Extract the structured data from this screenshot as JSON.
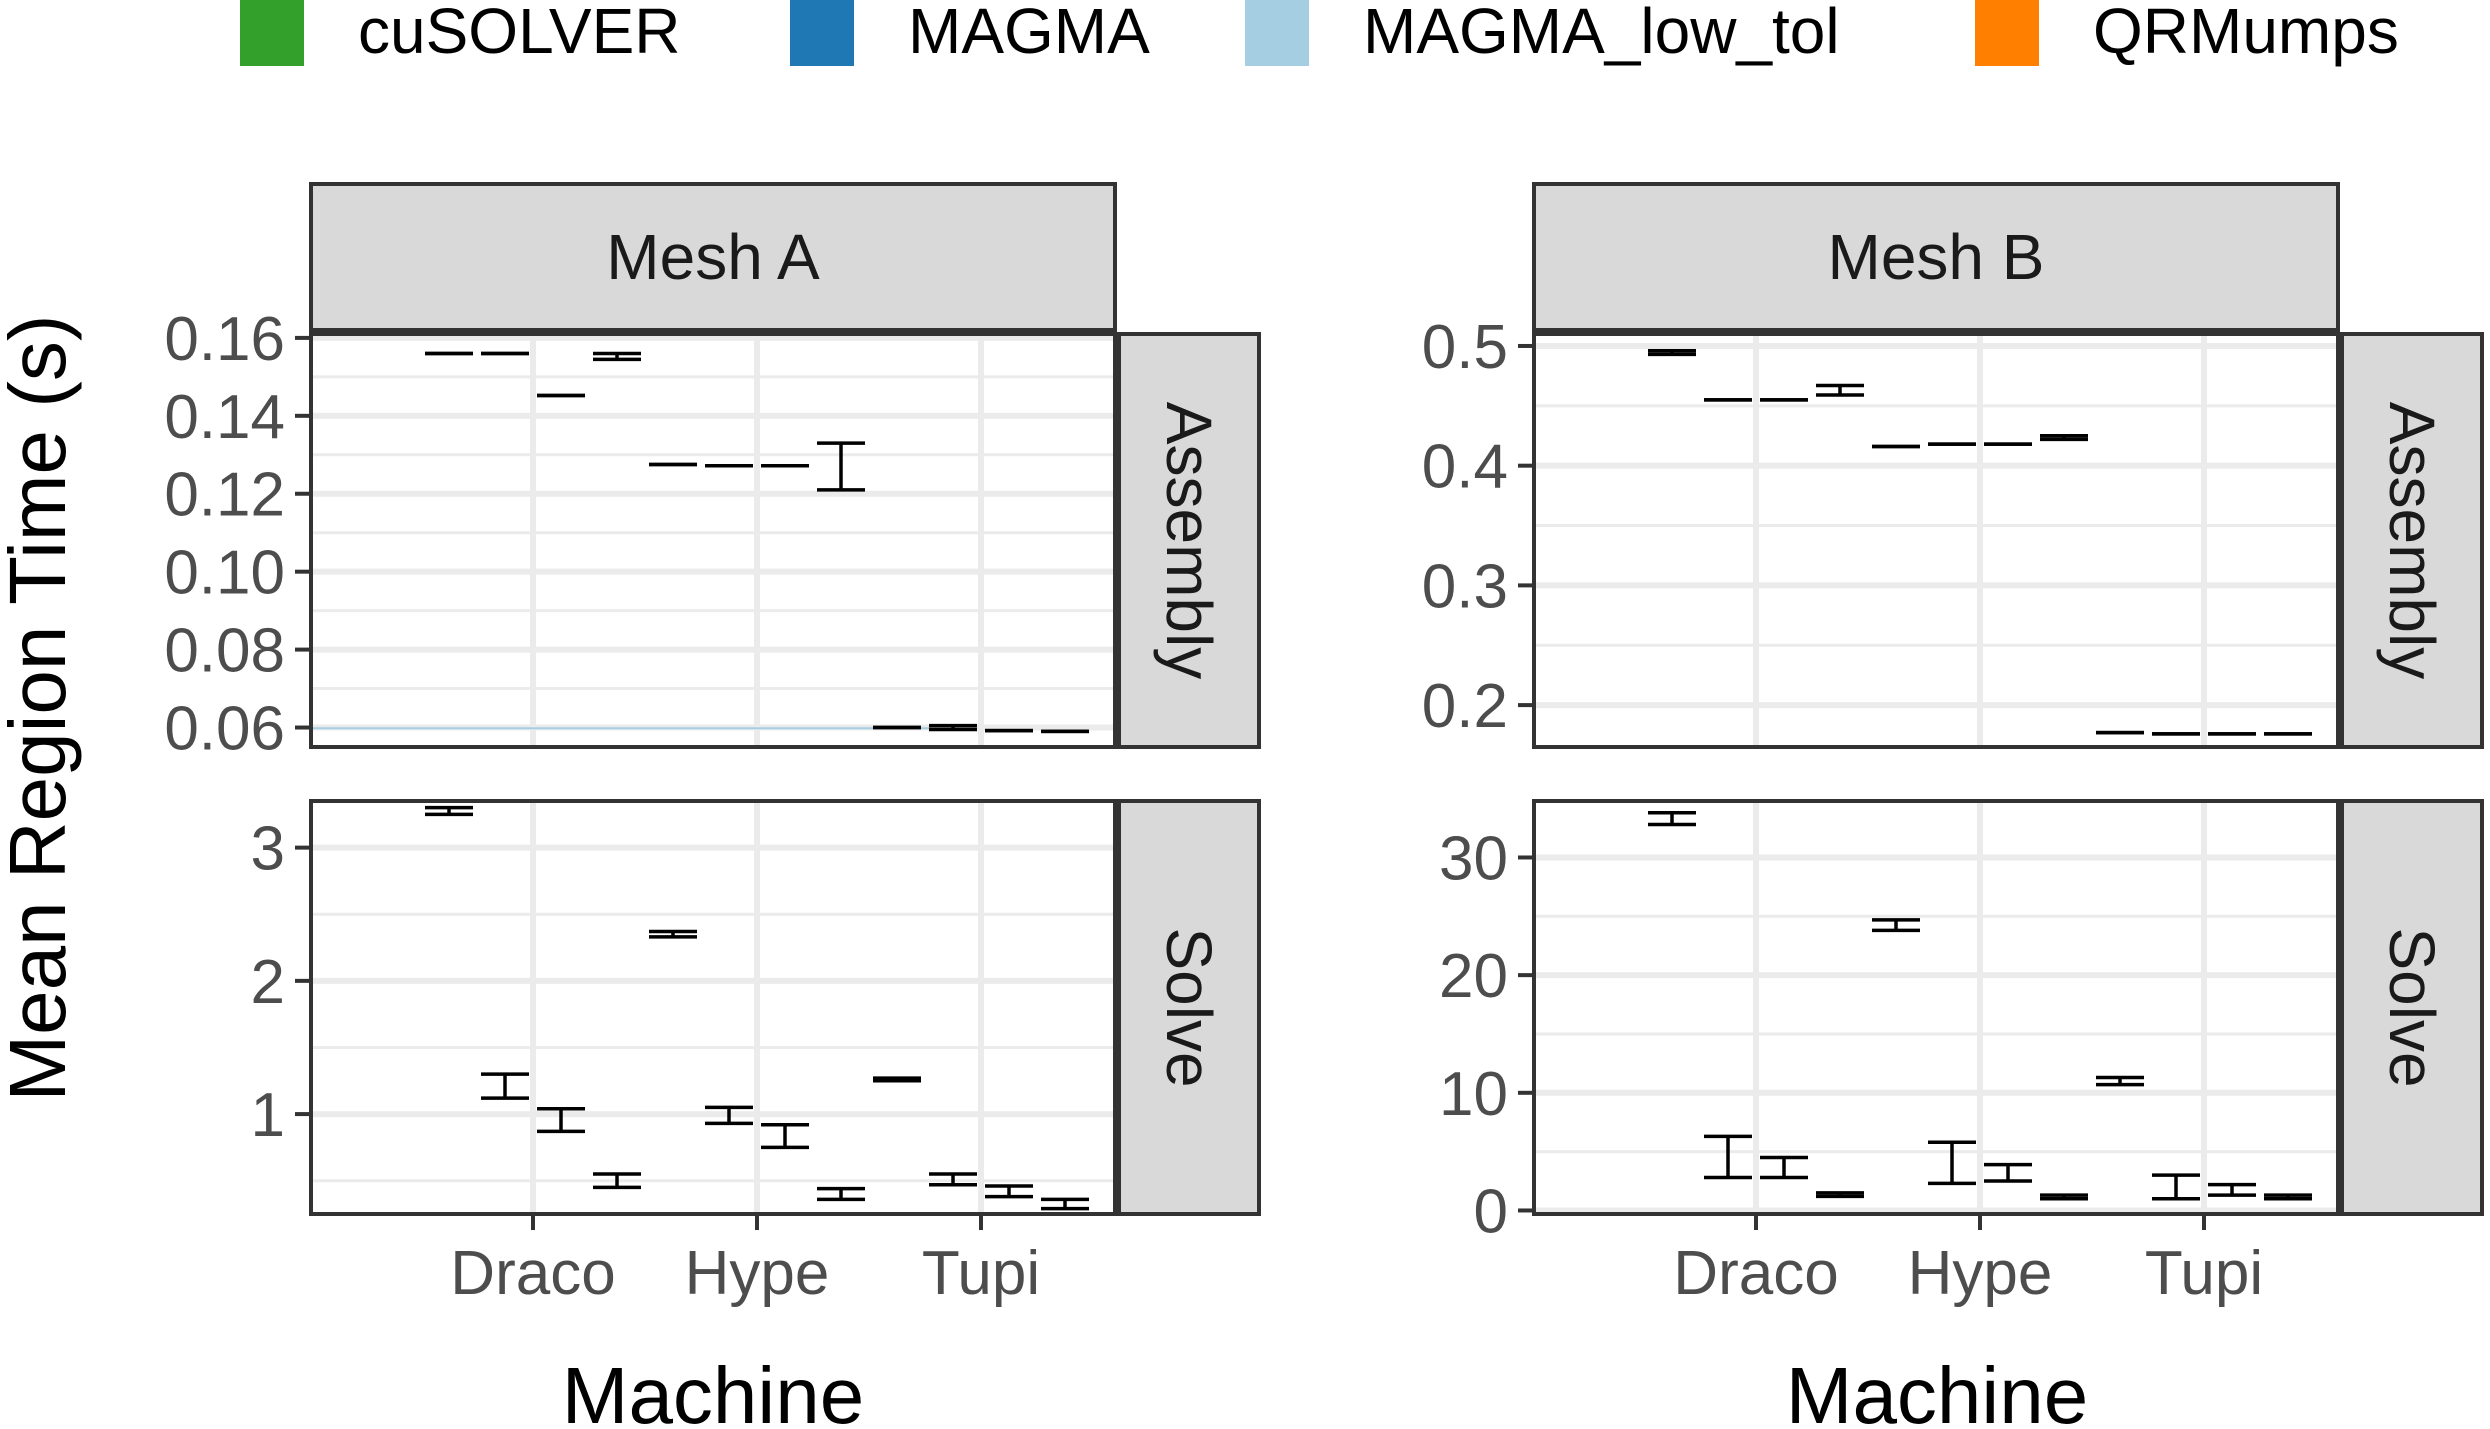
{
  "colors": {
    "cuSOLVER": "#33a02c",
    "MAGMA": "#1f78b4",
    "MAGMA_low_tol": "#a6cee3",
    "QRMumps": "#ff7f00",
    "grid": "#ebebeb",
    "panel_border": "#333333",
    "strip_fill": "#d9d9d9",
    "tick_text": "#4d4d4d"
  },
  "chart_data": {
    "type": "errorbar",
    "ylabel": "Mean Region Time (s)",
    "xlabel": "Machine",
    "legend": {
      "position": "top",
      "entries": [
        "cuSOLVER",
        "MAGMA",
        "MAGMA_low_tol",
        "QRMumps"
      ]
    },
    "machines": [
      "Draco",
      "Hype",
      "Tupi"
    ],
    "columns": [
      "Mesh A",
      "Mesh B"
    ],
    "rows": [
      "Assembly",
      "Solve"
    ],
    "panels": [
      {
        "col": "Mesh A",
        "row": "Assembly",
        "ylim": [
          0.055,
          0.161
        ],
        "yticks": [
          0.06,
          0.08,
          0.1,
          0.12,
          0.14,
          0.16
        ],
        "ytick_labels": [
          "0.06",
          "0.08",
          "0.10",
          "0.12",
          "0.14",
          "0.16"
        ],
        "series": {
          "cuSOLVER": [
            {
              "low": 0.156,
              "high": 0.156
            },
            {
              "low": 0.1275,
              "high": 0.1275
            },
            {
              "low": 0.06,
              "high": 0.06
            }
          ],
          "MAGMA": [
            {
              "low": 0.156,
              "high": 0.156
            },
            {
              "low": 0.1272,
              "high": 0.1272
            },
            {
              "low": 0.0595,
              "high": 0.0605
            }
          ],
          "MAGMA_low_tol": [
            {
              "low": 0.1452,
              "high": 0.1452
            },
            {
              "low": 0.1272,
              "high": 0.1272
            },
            {
              "low": 0.0592,
              "high": 0.0592
            }
          ],
          "QRMumps": [
            {
              "low": 0.1545,
              "high": 0.156
            },
            {
              "low": 0.121,
              "high": 0.133
            },
            {
              "low": 0.059,
              "high": 0.059
            }
          ]
        }
      },
      {
        "col": "Mesh B",
        "row": "Assembly",
        "ylim": [
          0.165,
          0.51
        ],
        "yticks": [
          0.2,
          0.3,
          0.4,
          0.5
        ],
        "ytick_labels": [
          "0.2",
          "0.3",
          "0.4",
          "0.5"
        ],
        "series": {
          "cuSOLVER": [
            {
              "low": 0.493,
              "high": 0.496
            },
            {
              "low": 0.416,
              "high": 0.416
            },
            {
              "low": 0.177,
              "high": 0.177
            }
          ],
          "MAGMA": [
            {
              "low": 0.455,
              "high": 0.455
            },
            {
              "low": 0.418,
              "high": 0.418
            },
            {
              "low": 0.176,
              "high": 0.176
            }
          ],
          "MAGMA_low_tol": [
            {
              "low": 0.455,
              "high": 0.455
            },
            {
              "low": 0.418,
              "high": 0.418
            },
            {
              "low": 0.176,
              "high": 0.176
            }
          ],
          "QRMumps": [
            {
              "low": 0.459,
              "high": 0.467
            },
            {
              "low": 0.422,
              "high": 0.425
            },
            {
              "low": 0.176,
              "high": 0.176
            }
          ]
        }
      },
      {
        "col": "Mesh A",
        "row": "Solve",
        "ylim": [
          0.25,
          3.35
        ],
        "yticks": [
          1,
          2,
          3
        ],
        "ytick_labels": [
          "1",
          "2",
          "3"
        ],
        "series": {
          "cuSOLVER": [
            {
              "low": 3.25,
              "high": 3.3
            },
            {
              "low": 2.33,
              "high": 2.37
            },
            {
              "low": 1.25,
              "high": 1.27
            }
          ],
          "MAGMA": [
            {
              "low": 1.12,
              "high": 1.3
            },
            {
              "low": 0.93,
              "high": 1.05
            },
            {
              "low": 0.47,
              "high": 0.55
            }
          ],
          "MAGMA_low_tol": [
            {
              "low": 0.87,
              "high": 1.04
            },
            {
              "low": 0.75,
              "high": 0.92
            },
            {
              "low": 0.38,
              "high": 0.46
            }
          ],
          "QRMumps": [
            {
              "low": 0.45,
              "high": 0.55
            },
            {
              "low": 0.36,
              "high": 0.44
            },
            {
              "low": 0.29,
              "high": 0.36
            }
          ]
        }
      },
      {
        "col": "Mesh B",
        "row": "Solve",
        "ylim": [
          -0.3,
          34.8
        ],
        "yticks": [
          0,
          10,
          20,
          30
        ],
        "ytick_labels": [
          "0",
          "10",
          "20",
          "30"
        ],
        "series": {
          "cuSOLVER": [
            {
              "low": 32.8,
              "high": 33.8
            },
            {
              "low": 23.8,
              "high": 24.7
            },
            {
              "low": 10.7,
              "high": 11.3
            }
          ],
          "MAGMA": [
            {
              "low": 2.8,
              "high": 6.3
            },
            {
              "low": 2.3,
              "high": 5.8
            },
            {
              "low": 1.0,
              "high": 3.0
            }
          ],
          "MAGMA_low_tol": [
            {
              "low": 2.8,
              "high": 4.5
            },
            {
              "low": 2.5,
              "high": 3.9
            },
            {
              "low": 1.3,
              "high": 2.2
            }
          ],
          "QRMumps": [
            {
              "low": 1.2,
              "high": 1.5
            },
            {
              "low": 1.0,
              "high": 1.3
            },
            {
              "low": 1.0,
              "high": 1.3
            }
          ]
        }
      }
    ],
    "annotations": [
      {
        "panel": "Mesh A / Assembly",
        "type": "hline",
        "series": "MAGMA_low_tol",
        "y": 0.0598,
        "x_from": "start",
        "x_to": "Tupi"
      }
    ]
  }
}
